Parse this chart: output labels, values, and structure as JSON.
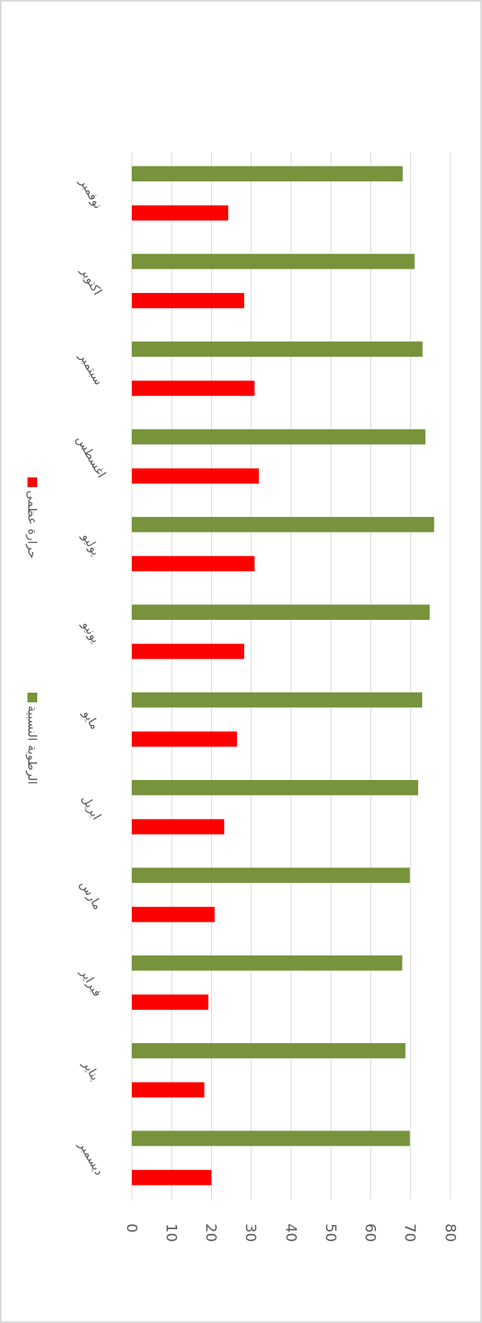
{
  "chart_data": {
    "type": "bar",
    "orientation": "horizontal",
    "categories": [
      "نوفمبر",
      "اكتوبر",
      "سبتمبر",
      "اغسطس",
      "يوليو",
      "يونيو",
      "مايو",
      "ابريل",
      "مارس",
      "فبراير",
      "يناير",
      "ديسمبر"
    ],
    "series": [
      {
        "name": "الرطوبة النسبية",
        "color": "#77933c",
        "values": [
          68,
          71,
          73,
          73.7,
          75.9,
          74.8,
          72.9,
          71.9,
          69.8,
          67.9,
          68.7,
          69.8
        ]
      },
      {
        "name": "حرارة عظمى",
        "color": "#ff0000",
        "values": [
          24.2,
          28.2,
          30.8,
          31.9,
          30.8,
          28.2,
          26.4,
          23.2,
          20.8,
          19.2,
          18.2,
          20
        ]
      }
    ],
    "xlim": [
      0,
      80
    ],
    "xticks": [
      0,
      10,
      20,
      30,
      40,
      50,
      60,
      70,
      80
    ],
    "grid": "x",
    "legend": "left"
  }
}
